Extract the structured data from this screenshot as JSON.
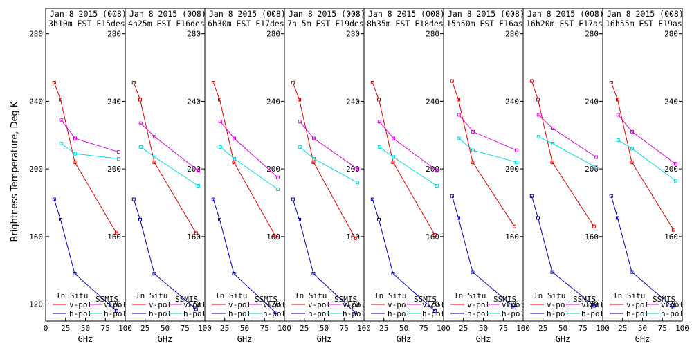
{
  "y_label": "Brightness Temperature, Deg K",
  "x_label": "GHz",
  "x_ticks": [
    0,
    25,
    50,
    75,
    100
  ],
  "y_ticks": [
    120,
    160,
    200,
    240,
    280
  ],
  "colors": {
    "insitu_v": "#dd0000",
    "insitu_h": "#0000bb",
    "ssmis_v": "#dd00dd",
    "ssmis_h": "#00dddd"
  },
  "legend": {
    "insitu_title": "In Situ",
    "ssmis_title": "SSMIS",
    "v_pol": "v-pol",
    "h_pol": "h-pol"
  },
  "chart_data": [
    {
      "type": "line",
      "title_line1": "Jan 8 2015 (008)",
      "title_line2": "3h10m EST F15des",
      "xlim": [
        0,
        100
      ],
      "ylim": [
        110,
        295
      ],
      "series": [
        {
          "name": "In Situ v-pol",
          "x": [
            10.7,
            18.7,
            36.5,
            89
          ],
          "y": [
            251,
            241,
            204,
            162
          ]
        },
        {
          "name": "In Situ h-pol",
          "x": [
            10.7,
            18.7,
            36.5,
            89
          ],
          "y": [
            182,
            170,
            138,
            116
          ]
        },
        {
          "name": "SSMIS v-pol",
          "x": [
            19.35,
            37,
            91.655
          ],
          "y": [
            229,
            218,
            210
          ]
        },
        {
          "name": "SSMIS h-pol",
          "x": [
            19.35,
            37,
            91.655
          ],
          "y": [
            215,
            209,
            206
          ]
        }
      ]
    },
    {
      "type": "line",
      "title_line1": "Jan 8 2015 (008)",
      "title_line2": "4h25m EST F16des",
      "xlim": [
        0,
        100
      ],
      "ylim": [
        110,
        295
      ],
      "series": [
        {
          "name": "In Situ v-pol",
          "x": [
            10.7,
            18.7,
            36.5,
            89
          ],
          "y": [
            251,
            241,
            204,
            162
          ]
        },
        {
          "name": "In Situ h-pol",
          "x": [
            10.7,
            18.7,
            36.5,
            89
          ],
          "y": [
            182,
            170,
            138,
            117
          ]
        },
        {
          "name": "SSMIS v-pol",
          "x": [
            19.35,
            37,
            91.655
          ],
          "y": [
            227,
            219,
            199
          ]
        },
        {
          "name": "SSMIS h-pol",
          "x": [
            19.35,
            37,
            91.655
          ],
          "y": [
            213,
            207,
            190
          ]
        }
      ]
    },
    {
      "type": "line",
      "title_line1": "Jan 8 2015 (008)",
      "title_line2": "6h30m EST F17des",
      "xlim": [
        0,
        100
      ],
      "ylim": [
        110,
        295
      ],
      "series": [
        {
          "name": "In Situ v-pol",
          "x": [
            10.7,
            18.7,
            36.5,
            89
          ],
          "y": [
            251,
            241,
            204,
            160
          ]
        },
        {
          "name": "In Situ h-pol",
          "x": [
            10.7,
            18.7,
            36.5,
            89
          ],
          "y": [
            182,
            170,
            138,
            115
          ]
        },
        {
          "name": "SSMIS v-pol",
          "x": [
            19.35,
            37,
            91.655
          ],
          "y": [
            228,
            218,
            195
          ]
        },
        {
          "name": "SSMIS h-pol",
          "x": [
            19.35,
            37,
            91.655
          ],
          "y": [
            213,
            206,
            188
          ]
        }
      ]
    },
    {
      "type": "line",
      "title_line1": "Jan 8 2015 (008)",
      "title_line2": "7h 5m EST F19des",
      "xlim": [
        0,
        100
      ],
      "ylim": [
        110,
        295
      ],
      "series": [
        {
          "name": "In Situ v-pol",
          "x": [
            10.7,
            18.7,
            36.5,
            89
          ],
          "y": [
            251,
            241,
            204,
            159
          ]
        },
        {
          "name": "In Situ h-pol",
          "x": [
            10.7,
            18.7,
            36.5,
            89
          ],
          "y": [
            182,
            170,
            138,
            115
          ]
        },
        {
          "name": "SSMIS v-pol",
          "x": [
            19.35,
            37,
            91.655
          ],
          "y": [
            228,
            218,
            200
          ]
        },
        {
          "name": "SSMIS h-pol",
          "x": [
            19.35,
            37,
            91.655
          ],
          "y": [
            213,
            206,
            192
          ]
        }
      ]
    },
    {
      "type": "line",
      "title_line1": "Jan 8 2015 (008)",
      "title_line2": "8h35m EST F18des",
      "xlim": [
        0,
        100
      ],
      "ylim": [
        110,
        295
      ],
      "series": [
        {
          "name": "In Situ v-pol",
          "x": [
            10.7,
            18.7,
            36.5,
            89
          ],
          "y": [
            251,
            241,
            204,
            161
          ]
        },
        {
          "name": "In Situ h-pol",
          "x": [
            10.7,
            18.7,
            36.5,
            89
          ],
          "y": [
            182,
            170,
            138,
            116
          ]
        },
        {
          "name": "SSMIS v-pol",
          "x": [
            19.35,
            37,
            91.655
          ],
          "y": [
            228,
            218,
            199
          ]
        },
        {
          "name": "SSMIS h-pol",
          "x": [
            19.35,
            37,
            91.655
          ],
          "y": [
            213,
            207,
            190
          ]
        }
      ]
    },
    {
      "type": "line",
      "title_line1": "Jan 8 2015 (008)",
      "title_line2": "15h50m EST F16asc",
      "xlim": [
        0,
        100
      ],
      "ylim": [
        110,
        295
      ],
      "series": [
        {
          "name": "In Situ v-pol",
          "x": [
            10.7,
            18.7,
            36.5,
            89
          ],
          "y": [
            252,
            241,
            204,
            166
          ]
        },
        {
          "name": "In Situ h-pol",
          "x": [
            10.7,
            18.7,
            36.5,
            89
          ],
          "y": [
            184,
            171,
            139,
            118
          ]
        },
        {
          "name": "SSMIS v-pol",
          "x": [
            19.35,
            37,
            91.655
          ],
          "y": [
            232,
            222,
            211
          ]
        },
        {
          "name": "SSMIS h-pol",
          "x": [
            19.35,
            37,
            91.655
          ],
          "y": [
            218,
            211,
            204
          ]
        }
      ]
    },
    {
      "type": "line",
      "title_line1": "Jan 8 2015 (008)",
      "title_line2": "16h20m EST F17asc",
      "xlim": [
        0,
        100
      ],
      "ylim": [
        110,
        295
      ],
      "series": [
        {
          "name": "In Situ v-pol",
          "x": [
            10.7,
            18.7,
            36.5,
            89
          ],
          "y": [
            252,
            241,
            204,
            166
          ]
        },
        {
          "name": "In Situ h-pol",
          "x": [
            10.7,
            18.7,
            36.5,
            89
          ],
          "y": [
            184,
            171,
            139,
            119
          ]
        },
        {
          "name": "SSMIS v-pol",
          "x": [
            19.35,
            37,
            91.655
          ],
          "y": [
            232,
            224,
            207
          ]
        },
        {
          "name": "SSMIS h-pol",
          "x": [
            19.35,
            37,
            91.655
          ],
          "y": [
            219,
            215,
            201
          ]
        }
      ]
    },
    {
      "type": "line",
      "title_line1": "Jan 8 2015 (008)",
      "title_line2": "16h55m EST F19asc",
      "xlim": [
        0,
        100
      ],
      "ylim": [
        110,
        295
      ],
      "series": [
        {
          "name": "In Situ v-pol",
          "x": [
            10.7,
            18.7,
            36.5,
            89
          ],
          "y": [
            251,
            241,
            204,
            164
          ]
        },
        {
          "name": "In Situ h-pol",
          "x": [
            10.7,
            18.7,
            36.5,
            89
          ],
          "y": [
            184,
            171,
            139,
            118
          ]
        },
        {
          "name": "SSMIS v-pol",
          "x": [
            19.35,
            37,
            91.655
          ],
          "y": [
            232,
            222,
            203
          ]
        },
        {
          "name": "SSMIS h-pol",
          "x": [
            19.35,
            37,
            91.655
          ],
          "y": [
            217,
            212,
            193
          ]
        }
      ]
    }
  ]
}
